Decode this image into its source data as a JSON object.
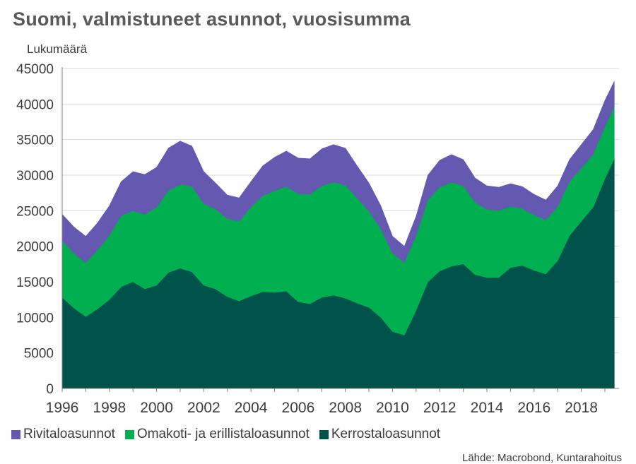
{
  "chart_data": {
    "type": "area",
    "stacked": true,
    "title": "Suomi, valmistuneet asunnot, vuosisumma",
    "ylabel": "Lukumäärä",
    "xlabel": "",
    "ylim": [
      0,
      45000
    ],
    "xlim": [
      1996,
      2019.6
    ],
    "y_ticks": [
      "0",
      "5000",
      "10000",
      "15000",
      "20000",
      "25000",
      "30000",
      "35000",
      "40000",
      "45000"
    ],
    "x_ticks": [
      "1996",
      "1998",
      "2000",
      "2002",
      "2004",
      "2006",
      "2008",
      "2010",
      "2012",
      "2014",
      "2016",
      "2018"
    ],
    "grid": "horizontal",
    "legend_position": "bottom-left",
    "x": [
      1996.0,
      1996.5,
      1997.0,
      1997.5,
      1998.0,
      1998.5,
      1999.0,
      1999.5,
      2000.0,
      2000.5,
      2001.0,
      2001.5,
      2002.0,
      2002.5,
      2003.0,
      2003.5,
      2004.0,
      2004.5,
      2005.0,
      2005.5,
      2006.0,
      2006.5,
      2007.0,
      2007.5,
      2008.0,
      2008.5,
      2009.0,
      2009.5,
      2010.0,
      2010.5,
      2011.0,
      2011.5,
      2012.0,
      2012.5,
      2013.0,
      2013.5,
      2014.0,
      2014.5,
      2015.0,
      2015.5,
      2016.0,
      2016.5,
      2017.0,
      2017.5,
      2018.0,
      2018.5,
      2019.0,
      2019.4
    ],
    "series": [
      {
        "name": "Kerrostaloasunnot",
        "color": "#00534b",
        "values": [
          12800,
          11300,
          10100,
          11200,
          12500,
          14300,
          15000,
          14000,
          14500,
          16300,
          16900,
          16400,
          14500,
          14000,
          12900,
          12300,
          13000,
          13600,
          13500,
          13700,
          12200,
          11900,
          12800,
          13100,
          12700,
          12000,
          11400,
          10000,
          8000,
          7500,
          11000,
          15000,
          16500,
          17200,
          17500,
          16000,
          15600,
          15600,
          17000,
          17300,
          16600,
          16100,
          18000,
          21500,
          23500,
          25500,
          29500,
          32300
        ]
      },
      {
        "name": "Omakoti- ja erillistaloasunnot",
        "color": "#00b050",
        "values": [
          8000,
          7700,
          7600,
          8300,
          9000,
          10000,
          10000,
          10500,
          11000,
          11500,
          11800,
          12000,
          11500,
          11200,
          11000,
          11200,
          12500,
          13500,
          14300,
          14700,
          15200,
          15400,
          15700,
          15900,
          15900,
          14800,
          13500,
          12500,
          11000,
          10200,
          10500,
          11500,
          11800,
          11800,
          11000,
          10200,
          9600,
          9400,
          8600,
          8000,
          7800,
          7600,
          7600,
          7600,
          7500,
          7400,
          7300,
          7300
        ]
      },
      {
        "name": "Rivitaloasunnot",
        "color": "#6558b1",
        "values": [
          3700,
          3700,
          3700,
          3800,
          4200,
          4800,
          5500,
          5600,
          5600,
          6000,
          6100,
          5700,
          4500,
          3700,
          3300,
          3300,
          3600,
          4200,
          4700,
          5000,
          5000,
          5000,
          5200,
          5300,
          5200,
          4500,
          4000,
          3200,
          2400,
          2300,
          2700,
          3500,
          3800,
          3900,
          3700,
          3400,
          3300,
          3300,
          3200,
          3100,
          2900,
          2800,
          2900,
          3100,
          3300,
          3500,
          3700,
          3600
        ]
      }
    ],
    "source_text": "Lähde: Macrobond, Kuntarahoitus"
  }
}
